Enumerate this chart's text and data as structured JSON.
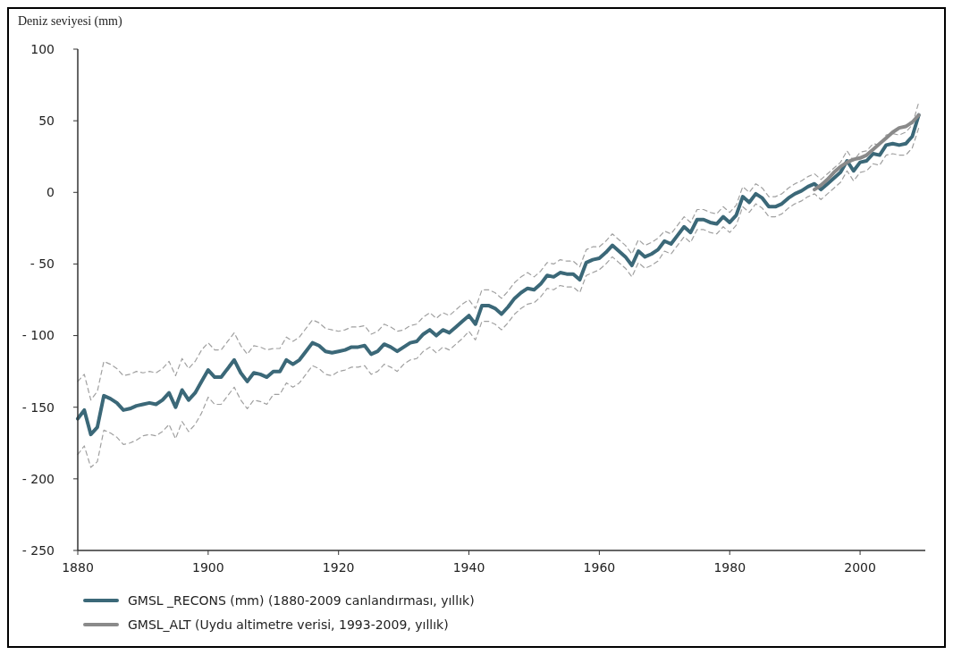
{
  "chart_data": {
    "type": "line",
    "ylabel": "Deniz seviyesi (mm)",
    "x": [
      1880,
      1881,
      1882,
      1883,
      1884,
      1885,
      1886,
      1887,
      1888,
      1889,
      1890,
      1891,
      1892,
      1893,
      1894,
      1895,
      1896,
      1897,
      1898,
      1899,
      1900,
      1901,
      1902,
      1903,
      1904,
      1905,
      1906,
      1907,
      1908,
      1909,
      1910,
      1911,
      1912,
      1913,
      1914,
      1915,
      1916,
      1917,
      1918,
      1919,
      1920,
      1921,
      1922,
      1923,
      1924,
      1925,
      1926,
      1927,
      1928,
      1929,
      1930,
      1931,
      1932,
      1933,
      1934,
      1935,
      1936,
      1937,
      1938,
      1939,
      1940,
      1941,
      1942,
      1943,
      1944,
      1945,
      1946,
      1947,
      1948,
      1949,
      1950,
      1951,
      1952,
      1953,
      1954,
      1955,
      1956,
      1957,
      1958,
      1959,
      1960,
      1961,
      1962,
      1963,
      1964,
      1965,
      1966,
      1967,
      1968,
      1969,
      1970,
      1971,
      1972,
      1973,
      1974,
      1975,
      1976,
      1977,
      1978,
      1979,
      1980,
      1981,
      1982,
      1983,
      1984,
      1985,
      1986,
      1987,
      1988,
      1989,
      1990,
      1991,
      1992,
      1993,
      1994,
      1995,
      1996,
      1997,
      1998,
      1999,
      2000,
      2001,
      2002,
      2003,
      2004,
      2005,
      2006,
      2007,
      2008,
      2009
    ],
    "series": [
      {
        "name": "GMSL _RECONS (mm) (1880-2009 canlandırması, yıllık)",
        "color": "#3b6878",
        "values": [
          -158,
          -152,
          -169,
          -164,
          -142,
          -144,
          -147,
          -152,
          -151,
          -149,
          -148,
          -147,
          -148,
          -145,
          -140,
          -150,
          -138,
          -145,
          -140,
          -132,
          -124,
          -129,
          -129,
          -123,
          -117,
          -126,
          -132,
          -126,
          -127,
          -129,
          -125,
          -125,
          -117,
          -120,
          -117,
          -111,
          -105,
          -107,
          -111,
          -112,
          -111,
          -110,
          -108,
          -108,
          -107,
          -113,
          -111,
          -106,
          -108,
          -111,
          -108,
          -105,
          -104,
          -99,
          -96,
          -100,
          -96,
          -98,
          -94,
          -90,
          -86,
          -92,
          -79,
          -79,
          -81,
          -85,
          -80,
          -74,
          -70,
          -67,
          -68,
          -64,
          -58,
          -59,
          -56,
          -57,
          -57,
          -61,
          -49,
          -47,
          -46,
          -42,
          -37,
          -41,
          -45,
          -51,
          -41,
          -45,
          -43,
          -40,
          -34,
          -36,
          -30,
          -24,
          -28,
          -19,
          -19,
          -21,
          -22,
          -17,
          -21,
          -16,
          -3,
          -7,
          -1,
          -4,
          -10,
          -10,
          -8,
          -4,
          -1,
          1,
          4,
          6,
          2,
          6,
          10,
          14,
          22,
          15,
          21,
          22,
          27,
          26,
          33,
          34,
          33,
          34,
          39,
          54
        ]
      },
      {
        "color": "#a0a0a0",
        "line_style": "dashed",
        "values": [
          -132,
          -127,
          -145,
          -139,
          -118,
          -120,
          -123,
          -128,
          -127,
          -125,
          -126,
          -125,
          -126,
          -123,
          -118,
          -128,
          -116,
          -123,
          -118,
          -110,
          -105,
          -110,
          -110,
          -104,
          -98,
          -107,
          -113,
          -107,
          -108,
          -110,
          -109,
          -109,
          -101,
          -104,
          -101,
          -95,
          -89,
          -91,
          -95,
          -96,
          -97,
          -96,
          -94,
          -94,
          -93,
          -99,
          -97,
          -92,
          -94,
          -97,
          -96,
          -93,
          -92,
          -87,
          -84,
          -88,
          -84,
          -86,
          -82,
          -78,
          -75,
          -81,
          -68,
          -68,
          -70,
          -74,
          -69,
          -63,
          -59,
          -56,
          -59,
          -55,
          -49,
          -50,
          -47,
          -48,
          -48,
          -52,
          -40,
          -38,
          -38,
          -34,
          -29,
          -33,
          -37,
          -43,
          -33,
          -37,
          -35,
          -32,
          -27,
          -29,
          -23,
          -17,
          -21,
          -12,
          -12,
          -14,
          -15,
          -10,
          -14,
          -9,
          4,
          0,
          6,
          3,
          -3,
          -3,
          -1,
          3,
          6,
          8,
          11,
          13,
          9,
          13,
          17,
          21,
          29,
          22,
          28,
          29,
          34,
          33,
          40,
          41,
          40,
          42,
          47,
          63
        ]
      },
      {
        "color": "#a0a0a0",
        "line_style": "dashed",
        "values": [
          -183,
          -177,
          -192,
          -188,
          -166,
          -168,
          -171,
          -176,
          -175,
          -173,
          -170,
          -169,
          -170,
          -167,
          -162,
          -172,
          -160,
          -167,
          -162,
          -154,
          -143,
          -148,
          -148,
          -142,
          -136,
          -145,
          -151,
          -145,
          -146,
          -148,
          -141,
          -141,
          -133,
          -136,
          -133,
          -127,
          -121,
          -123,
          -127,
          -128,
          -125,
          -124,
          -122,
          -122,
          -121,
          -127,
          -125,
          -120,
          -122,
          -125,
          -120,
          -117,
          -116,
          -111,
          -108,
          -112,
          -108,
          -110,
          -106,
          -102,
          -97,
          -103,
          -90,
          -90,
          -92,
          -96,
          -91,
          -85,
          -81,
          -78,
          -77,
          -73,
          -67,
          -68,
          -65,
          -66,
          -66,
          -70,
          -58,
          -56,
          -54,
          -50,
          -45,
          -49,
          -53,
          -59,
          -49,
          -53,
          -51,
          -48,
          -41,
          -43,
          -37,
          -31,
          -35,
          -26,
          -26,
          -28,
          -29,
          -24,
          -28,
          -23,
          -10,
          -14,
          -8,
          -11,
          -17,
          -17,
          -15,
          -11,
          -8,
          -6,
          -3,
          -1,
          -5,
          -1,
          3,
          7,
          15,
          8,
          14,
          15,
          20,
          19,
          26,
          27,
          26,
          26,
          31,
          45
        ]
      },
      {
        "name": "GMSL_ALT (Uydu altimetre verisi, 1993-2009, yıllık)",
        "color": "#8a8a8a",
        "x": [
          1993,
          1994,
          1995,
          1996,
          1997,
          1998,
          1999,
          2000,
          2001,
          2002,
          2003,
          2004,
          2005,
          2006,
          2007,
          2008,
          2009
        ],
        "values": [
          2,
          5,
          9,
          14,
          18,
          21,
          23,
          24,
          26,
          30,
          34,
          38,
          42,
          45,
          46,
          49,
          54
        ]
      }
    ],
    "xlim": [
      1880,
      2010
    ],
    "xticks": [
      1880,
      1900,
      1920,
      1940,
      1960,
      1980,
      2000
    ],
    "ylim": [
      -250,
      100
    ],
    "yticks": [
      100,
      50,
      0,
      {
        "value": -50,
        "label": "- 50"
      },
      {
        "value": -100,
        "label": "- 100"
      },
      {
        "value": -150,
        "label": "- 150"
      },
      {
        "value": -200,
        "label": "- 200"
      },
      {
        "value": -250,
        "label": "- 250"
      }
    ],
    "grid": false,
    "legend": "bottom",
    "line_style": "solid",
    "marker": "none"
  }
}
